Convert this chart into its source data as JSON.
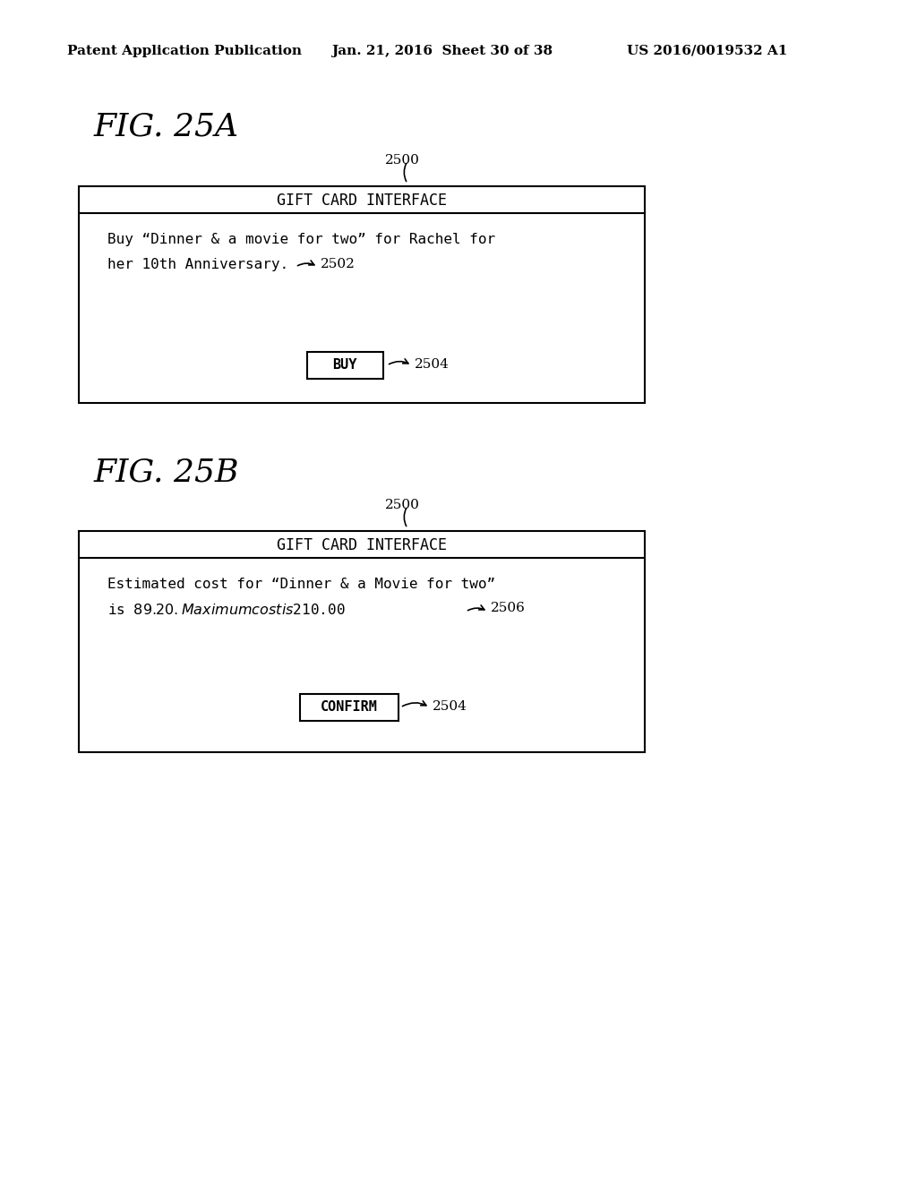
{
  "bg_color": "#ffffff",
  "header_text": "Patent Application Publication",
  "header_date": "Jan. 21, 2016  Sheet 30 of 38",
  "header_patent": "US 2016/0019532 A1",
  "fig_a_label": "FIG. 25A",
  "fig_b_label": "FIG. 25B",
  "box_title": "GIFT CARD INTERFACE",
  "label_2500": "2500",
  "label_2502": "2502",
  "label_2504": "2504",
  "label_2506": "2506",
  "fig_a_body_line1": "Buy “Dinner & a movie for two” for Rachel for",
  "fig_a_body_line2": "her 10th Anniversary.",
  "fig_a_button": "BUY",
  "fig_b_body_line1": "Estimated cost for “Dinner & a Movie for two”",
  "fig_b_body_line2": "is $89.20. Maximum cost is $210.00",
  "fig_b_button": "CONFIRM"
}
